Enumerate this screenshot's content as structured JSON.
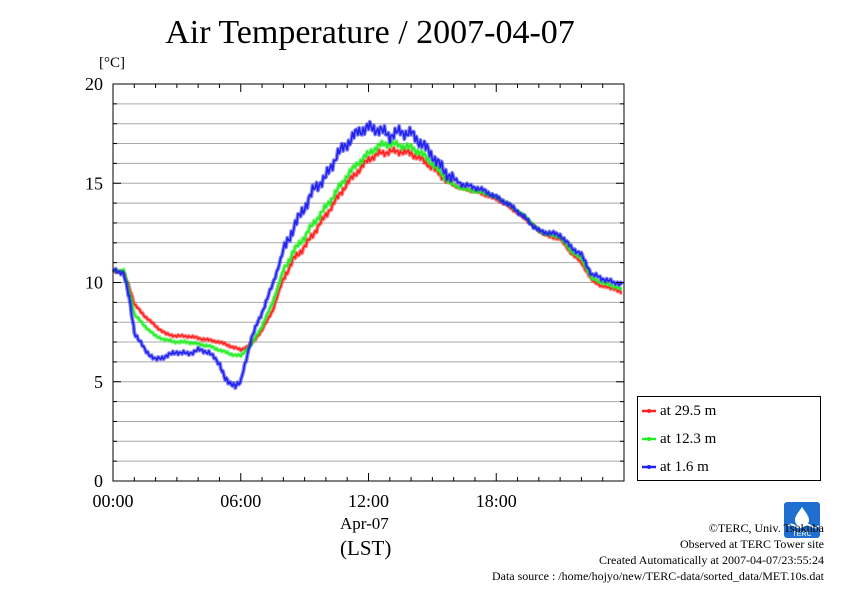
{
  "title": "Air Temperature / 2007-04-07",
  "unit": "[°C]",
  "chart_data": {
    "type": "line",
    "title": "Air Temperature / 2007-04-07",
    "ylabel": "[°C]",
    "xlabel": "Apr-07 (LST)",
    "ylim": [
      0,
      20
    ],
    "xlim_hours": [
      0,
      24
    ],
    "y_ticks": [
      "0",
      "5",
      "10",
      "15",
      "20"
    ],
    "x_ticks": [
      "00:00",
      "06:00",
      "12:00",
      "18:00"
    ],
    "grid": true,
    "legend_position": "right-bottom outside",
    "series": [
      {
        "name": "at 29.5 m",
        "color": "#ff2020",
        "x": [
          0,
          0.5,
          0.75,
          1,
          1.5,
          2,
          2.5,
          3,
          3.5,
          4,
          4.5,
          5,
          5.5,
          6,
          6.5,
          7,
          7.5,
          8,
          8.5,
          9,
          9.5,
          10,
          10.5,
          11,
          11.5,
          12,
          12.5,
          13,
          13.5,
          14,
          14.5,
          15,
          15.5,
          16,
          16.5,
          17,
          17.5,
          18,
          18.5,
          19,
          19.5,
          20,
          20.5,
          21,
          21.5,
          22,
          22.5,
          23,
          23.5,
          23.9
        ],
        "values": [
          10.6,
          10.5,
          9.8,
          8.9,
          8.3,
          7.8,
          7.4,
          7.3,
          7.3,
          7.2,
          7.1,
          7.0,
          6.8,
          6.6,
          6.9,
          7.6,
          8.6,
          10.2,
          11.2,
          11.8,
          12.6,
          13.4,
          14.2,
          15.0,
          15.6,
          16.2,
          16.5,
          16.6,
          16.6,
          16.5,
          16.2,
          15.8,
          15.3,
          14.9,
          14.7,
          14.6,
          14.4,
          14.2,
          13.9,
          13.5,
          13.1,
          12.6,
          12.3,
          12.2,
          11.5,
          11.0,
          10.1,
          9.8,
          9.7,
          9.5
        ]
      },
      {
        "name": "at 12.3 m",
        "color": "#22ee22",
        "x": [
          0,
          0.5,
          0.75,
          1,
          1.5,
          2,
          2.5,
          3,
          3.5,
          4,
          4.5,
          5,
          5.5,
          6,
          6.5,
          7,
          7.5,
          8,
          8.5,
          9,
          9.5,
          10,
          10.5,
          11,
          11.5,
          12,
          12.5,
          13,
          13.5,
          14,
          14.5,
          15,
          15.5,
          16,
          16.5,
          17,
          17.5,
          18,
          18.5,
          19,
          19.5,
          20,
          20.5,
          21,
          21.5,
          22,
          22.5,
          23,
          23.5,
          23.9
        ],
        "values": [
          10.6,
          10.6,
          9.6,
          8.4,
          7.8,
          7.3,
          7.1,
          7.0,
          7.0,
          6.9,
          6.8,
          6.6,
          6.4,
          6.3,
          6.9,
          7.8,
          9.0,
          10.6,
          11.6,
          12.3,
          13.1,
          13.8,
          14.6,
          15.4,
          16.0,
          16.5,
          16.9,
          17.0,
          16.9,
          16.8,
          16.5,
          16.0,
          15.4,
          14.9,
          14.7,
          14.6,
          14.5,
          14.3,
          14.0,
          13.6,
          13.2,
          12.6,
          12.4,
          12.3,
          11.6,
          11.2,
          10.2,
          10.0,
          9.8,
          9.7
        ]
      },
      {
        "name": "at 1.6 m",
        "color": "#2222ee",
        "x": [
          0,
          0.5,
          0.75,
          1,
          1.5,
          2,
          2.5,
          3,
          3.5,
          4,
          4.5,
          5,
          5.25,
          5.5,
          5.75,
          6,
          6.5,
          7,
          7.5,
          8,
          8.5,
          9,
          9.5,
          10,
          10.5,
          11,
          11.5,
          12,
          12.5,
          13,
          13.5,
          14,
          14.5,
          15,
          15.5,
          16,
          16.5,
          17,
          17.5,
          18,
          18.5,
          19,
          19.5,
          20,
          20.5,
          21,
          21.5,
          22,
          22.5,
          23,
          23.5,
          23.9
        ],
        "values": [
          10.6,
          10.5,
          9.3,
          7.5,
          6.6,
          6.1,
          6.3,
          6.5,
          6.4,
          6.6,
          6.5,
          5.9,
          5.2,
          4.9,
          4.8,
          5.0,
          7.2,
          8.5,
          9.9,
          11.6,
          12.8,
          13.8,
          14.8,
          15.3,
          16.4,
          17.0,
          17.6,
          17.8,
          17.7,
          17.4,
          17.6,
          17.5,
          17.0,
          16.4,
          15.7,
          15.2,
          14.9,
          14.8,
          14.6,
          14.3,
          14.0,
          13.6,
          13.1,
          12.6,
          12.5,
          12.4,
          11.8,
          11.4,
          10.4,
          10.2,
          10.0,
          9.9
        ]
      }
    ]
  },
  "x_date_label": "Apr-07",
  "x_zone_label": "(LST)",
  "credits": {
    "copyright": "©TERC, Univ. Tsukuba",
    "observed": "Observed at TERC Tower site",
    "created": "Created Automatically at 2007-04-07/23:55:24",
    "source": "Data source : /home/hojyo/new/TERC-data/sorted_data/MET.10s.dat"
  },
  "logo_icon": "terc-logo-icon",
  "logo_text": "TERC"
}
